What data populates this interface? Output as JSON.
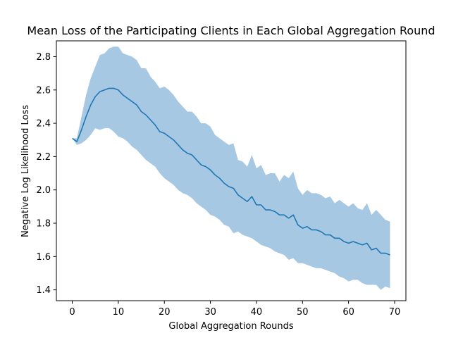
{
  "chart_data": {
    "type": "line",
    "title": "Mean Loss of the Participating Clients in Each Global Aggregation Round",
    "xlabel": "Global Aggregation Rounds",
    "ylabel": "Negative Log Likelihood Loss",
    "xlim": [
      -3.45,
      72.45
    ],
    "ylim": [
      1.335,
      2.895
    ],
    "xticks": [
      0,
      10,
      20,
      30,
      40,
      50,
      60,
      70
    ],
    "yticks": [
      1.4,
      1.6,
      1.8,
      2.0,
      2.2,
      2.4,
      2.6,
      2.8
    ],
    "ytick_labels": [
      "1.4",
      "1.6",
      "1.8",
      "2.0",
      "2.2",
      "2.4",
      "2.6",
      "2.8"
    ],
    "grid": false,
    "line_color": "#1f77b4",
    "band_color": "#a6c8e2",
    "series": [
      {
        "name": "mean",
        "x": [
          0,
          1,
          2,
          3,
          4,
          5,
          6,
          7,
          8,
          9,
          10,
          11,
          12,
          13,
          14,
          15,
          16,
          17,
          18,
          19,
          20,
          21,
          22,
          23,
          24,
          25,
          26,
          27,
          28,
          29,
          30,
          31,
          32,
          33,
          34,
          35,
          36,
          37,
          38,
          39,
          40,
          41,
          42,
          43,
          44,
          45,
          46,
          47,
          48,
          49,
          50,
          51,
          52,
          53,
          54,
          55,
          56,
          57,
          58,
          59,
          60,
          61,
          62,
          63,
          64,
          65,
          66,
          67,
          68,
          69
        ],
        "values": [
          2.31,
          2.29,
          2.36,
          2.44,
          2.51,
          2.56,
          2.59,
          2.6,
          2.61,
          2.61,
          2.6,
          2.57,
          2.55,
          2.53,
          2.51,
          2.47,
          2.45,
          2.42,
          2.39,
          2.35,
          2.34,
          2.32,
          2.3,
          2.27,
          2.24,
          2.22,
          2.21,
          2.18,
          2.15,
          2.14,
          2.12,
          2.09,
          2.07,
          2.04,
          2.02,
          2.01,
          1.97,
          1.95,
          1.93,
          1.96,
          1.91,
          1.91,
          1.88,
          1.88,
          1.87,
          1.85,
          1.85,
          1.83,
          1.85,
          1.79,
          1.77,
          1.78,
          1.76,
          1.76,
          1.75,
          1.73,
          1.73,
          1.71,
          1.71,
          1.69,
          1.68,
          1.69,
          1.68,
          1.67,
          1.68,
          1.64,
          1.65,
          1.62,
          1.62,
          1.61
        ]
      },
      {
        "name": "upper",
        "x": [
          0,
          1,
          2,
          3,
          4,
          5,
          6,
          7,
          8,
          9,
          10,
          11,
          12,
          13,
          14,
          15,
          16,
          17,
          18,
          19,
          20,
          21,
          22,
          23,
          24,
          25,
          26,
          27,
          28,
          29,
          30,
          31,
          32,
          33,
          34,
          35,
          36,
          37,
          38,
          39,
          40,
          41,
          42,
          43,
          44,
          45,
          46,
          47,
          48,
          49,
          50,
          51,
          52,
          53,
          54,
          55,
          56,
          57,
          58,
          59,
          60,
          61,
          62,
          63,
          64,
          65,
          66,
          67,
          68,
          69
        ],
        "values": [
          2.31,
          2.31,
          2.44,
          2.57,
          2.67,
          2.74,
          2.81,
          2.82,
          2.85,
          2.86,
          2.86,
          2.82,
          2.81,
          2.8,
          2.78,
          2.73,
          2.73,
          2.68,
          2.65,
          2.61,
          2.62,
          2.6,
          2.57,
          2.53,
          2.5,
          2.47,
          2.47,
          2.44,
          2.4,
          2.4,
          2.38,
          2.33,
          2.31,
          2.29,
          2.27,
          2.28,
          2.18,
          2.17,
          2.14,
          2.21,
          2.13,
          2.15,
          2.09,
          2.1,
          2.1,
          2.05,
          2.09,
          2.07,
          2.11,
          2.01,
          1.97,
          2.0,
          1.98,
          1.98,
          1.97,
          1.95,
          1.96,
          1.92,
          1.94,
          1.92,
          1.9,
          1.92,
          1.89,
          1.88,
          1.92,
          1.85,
          1.88,
          1.85,
          1.82,
          1.81
        ]
      },
      {
        "name": "lower",
        "x": [
          0,
          1,
          2,
          3,
          4,
          5,
          6,
          7,
          8,
          9,
          10,
          11,
          12,
          13,
          14,
          15,
          16,
          17,
          18,
          19,
          20,
          21,
          22,
          23,
          24,
          25,
          26,
          27,
          28,
          29,
          30,
          31,
          32,
          33,
          34,
          35,
          36,
          37,
          38,
          39,
          40,
          41,
          42,
          43,
          44,
          45,
          46,
          47,
          48,
          49,
          50,
          51,
          52,
          53,
          54,
          55,
          56,
          57,
          58,
          59,
          60,
          61,
          62,
          63,
          64,
          65,
          66,
          67,
          68,
          69
        ],
        "values": [
          2.31,
          2.27,
          2.28,
          2.3,
          2.33,
          2.37,
          2.36,
          2.37,
          2.37,
          2.35,
          2.32,
          2.31,
          2.29,
          2.26,
          2.24,
          2.21,
          2.18,
          2.16,
          2.14,
          2.1,
          2.07,
          2.05,
          2.03,
          2.0,
          1.98,
          1.97,
          1.95,
          1.92,
          1.9,
          1.88,
          1.85,
          1.84,
          1.82,
          1.79,
          1.78,
          1.74,
          1.75,
          1.73,
          1.72,
          1.71,
          1.69,
          1.67,
          1.66,
          1.65,
          1.63,
          1.62,
          1.61,
          1.58,
          1.59,
          1.56,
          1.56,
          1.55,
          1.54,
          1.53,
          1.53,
          1.52,
          1.51,
          1.5,
          1.48,
          1.47,
          1.45,
          1.46,
          1.46,
          1.44,
          1.43,
          1.43,
          1.43,
          1.4,
          1.42,
          1.41
        ]
      }
    ]
  }
}
